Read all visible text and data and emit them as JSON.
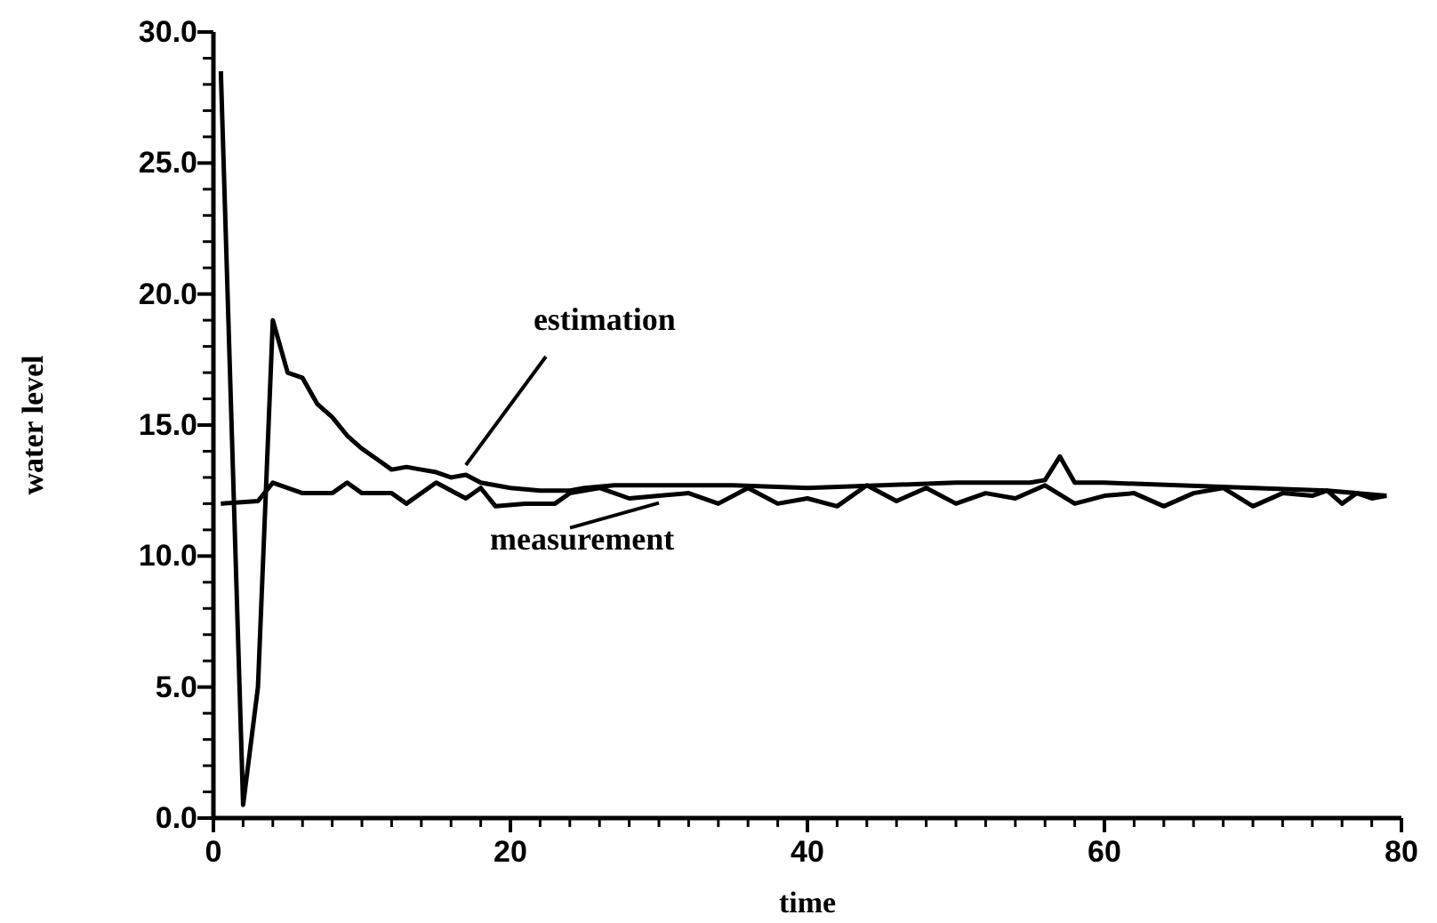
{
  "chart_data": {
    "type": "line",
    "xlabel": "time",
    "ylabel": "water level",
    "xlim": [
      0,
      80
    ],
    "ylim": [
      0,
      30
    ],
    "xticks": [
      0,
      {
        "value": 2,
        "label": null
      },
      {
        "value": 4,
        "label": null
      },
      {
        "value": 6,
        "label": null
      },
      {
        "value": 8,
        "label": null
      },
      {
        "value": 10,
        "label": null
      },
      {
        "value": 12,
        "label": null
      },
      {
        "value": 14,
        "label": null
      },
      {
        "value": 16,
        "label": null
      },
      {
        "value": 18,
        "label": null
      },
      20,
      {
        "value": 22,
        "label": null
      },
      {
        "value": 24,
        "label": null
      },
      {
        "value": 26,
        "label": null
      },
      {
        "value": 28,
        "label": null
      },
      {
        "value": 30,
        "label": null
      },
      {
        "value": 32,
        "label": null
      },
      {
        "value": 34,
        "label": null
      },
      {
        "value": 36,
        "label": null
      },
      {
        "value": 38,
        "label": null
      },
      40,
      {
        "value": 42,
        "label": null
      },
      {
        "value": 44,
        "label": null
      },
      {
        "value": 46,
        "label": null
      },
      {
        "value": 48,
        "label": null
      },
      {
        "value": 50,
        "label": null
      },
      {
        "value": 52,
        "label": null
      },
      {
        "value": 54,
        "label": null
      },
      {
        "value": 56,
        "label": null
      },
      {
        "value": 58,
        "label": null
      },
      60,
      {
        "value": 62,
        "label": null
      },
      {
        "value": 64,
        "label": null
      },
      {
        "value": 66,
        "label": null
      },
      {
        "value": 68,
        "label": null
      },
      {
        "value": 70,
        "label": null
      },
      {
        "value": 72,
        "label": null
      },
      {
        "value": 74,
        "label": null
      },
      {
        "value": 76,
        "label": null
      },
      {
        "value": 78,
        "label": null
      },
      80
    ],
    "yticks": [
      {
        "value": 0,
        "label": "0.0"
      },
      {
        "value": 1,
        "label": null
      },
      {
        "value": 2,
        "label": null
      },
      {
        "value": 3,
        "label": null
      },
      {
        "value": 4,
        "label": null
      },
      {
        "value": 5,
        "label": "5.0"
      },
      {
        "value": 6,
        "label": null
      },
      {
        "value": 7,
        "label": null
      },
      {
        "value": 8,
        "label": null
      },
      {
        "value": 9,
        "label": null
      },
      {
        "value": 10,
        "label": "10.0"
      },
      {
        "value": 11,
        "label": null
      },
      {
        "value": 12,
        "label": null
      },
      {
        "value": 13,
        "label": null
      },
      {
        "value": 14,
        "label": null
      },
      {
        "value": 15,
        "label": "15.0"
      },
      {
        "value": 16,
        "label": null
      },
      {
        "value": 17,
        "label": null
      },
      {
        "value": 18,
        "label": null
      },
      {
        "value": 19,
        "label": null
      },
      {
        "value": 20,
        "label": "20.0"
      },
      {
        "value": 21,
        "label": null
      },
      {
        "value": 22,
        "label": null
      },
      {
        "value": 23,
        "label": null
      },
      {
        "value": 24,
        "label": null
      },
      {
        "value": 25,
        "label": "25.0"
      },
      {
        "value": 26,
        "label": null
      },
      {
        "value": 27,
        "label": null
      },
      {
        "value": 28,
        "label": null
      },
      {
        "value": 29,
        "label": null
      },
      {
        "value": 30,
        "label": "30.0"
      }
    ],
    "grid": false,
    "line_style": "solid",
    "marker": "none",
    "annotations": [
      {
        "text": "estimation",
        "x": 17,
        "y": 13.2
      },
      {
        "text": "measurement",
        "x": 30,
        "y": 12.3
      }
    ],
    "series": [
      {
        "color": "#000000",
        "x": [
          0.5,
          2,
          3,
          4,
          5,
          6,
          7,
          8,
          9,
          10,
          11,
          12,
          13,
          14,
          15,
          16,
          17,
          18,
          19,
          20,
          22,
          24,
          25,
          27,
          30,
          35,
          40,
          45,
          50,
          55,
          56,
          57,
          58,
          60,
          65,
          70,
          75,
          79
        ],
        "values": [
          28.5,
          0.5,
          5,
          19,
          17,
          16.8,
          15.8,
          15.3,
          14.6,
          14.1,
          13.7,
          13.3,
          13.4,
          13.3,
          13.2,
          13.0,
          13.1,
          12.8,
          12.7,
          12.6,
          12.5,
          12.5,
          12.6,
          12.7,
          12.7,
          12.7,
          12.6,
          12.7,
          12.8,
          12.8,
          12.9,
          13.8,
          12.8,
          12.8,
          12.7,
          12.6,
          12.5,
          12.3
        ]
      },
      {
        "color": "#000000",
        "x": [
          0.5,
          3,
          4,
          6,
          8,
          9,
          10,
          12,
          13,
          15,
          17,
          18,
          19,
          21,
          23,
          24,
          26,
          28,
          30,
          32,
          34,
          36,
          38,
          40,
          42,
          44,
          46,
          48,
          50,
          52,
          54,
          56,
          58,
          60,
          62,
          64,
          66,
          68,
          70,
          72,
          74,
          75,
          76,
          77,
          78,
          79
        ],
        "values": [
          12.0,
          12.1,
          12.8,
          12.4,
          12.4,
          12.8,
          12.4,
          12.4,
          12.0,
          12.8,
          12.2,
          12.6,
          11.9,
          12.0,
          12.0,
          12.4,
          12.6,
          12.2,
          12.3,
          12.4,
          12.0,
          12.6,
          12.0,
          12.2,
          11.9,
          12.7,
          12.1,
          12.6,
          12.0,
          12.4,
          12.2,
          12.7,
          12.0,
          12.3,
          12.4,
          11.9,
          12.4,
          12.6,
          11.9,
          12.4,
          12.3,
          12.5,
          12.0,
          12.4,
          12.2,
          12.3
        ]
      }
    ]
  }
}
